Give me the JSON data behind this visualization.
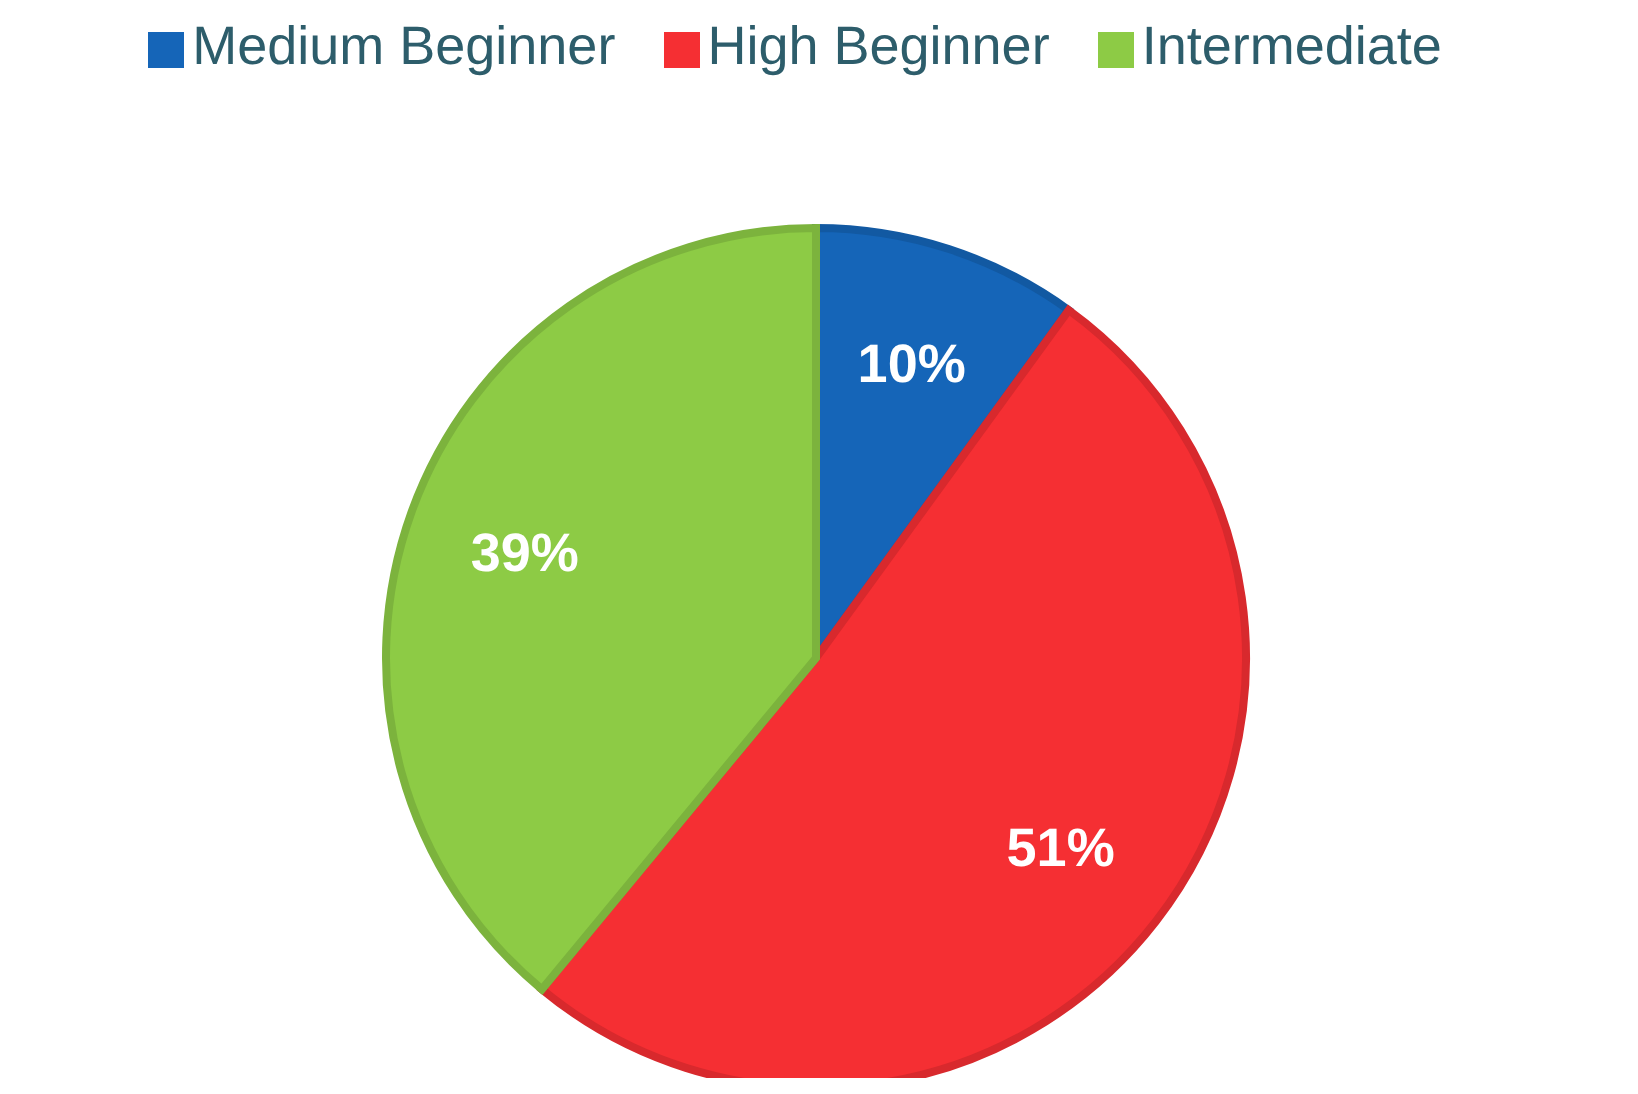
{
  "chart_data": {
    "type": "pie",
    "categories": [
      "Medium Beginner",
      "High Beginner",
      "Intermediate"
    ],
    "values": [
      10,
      51,
      39
    ],
    "colors": [
      "#1565b8",
      "#f52f33",
      "#8dcb45"
    ],
    "value_labels": [
      "10%",
      "51%",
      "39%"
    ],
    "legend": "top"
  }
}
